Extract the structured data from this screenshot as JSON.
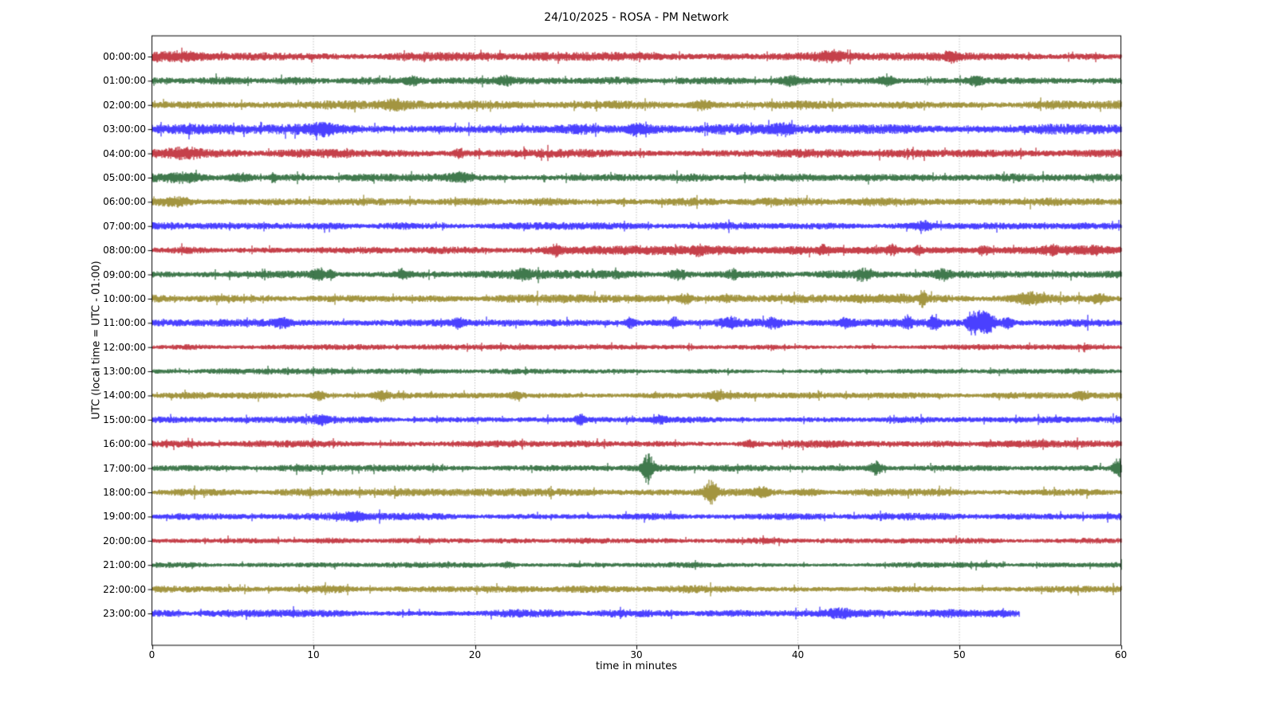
{
  "title": "24/10/2025 - ROSA - PM Network",
  "xlabel": "time in minutes",
  "ylabel": "UTC (local time = UTC - 01:00)",
  "chart_data": {
    "type": "line",
    "subtype": "helicorder-dayplot",
    "title": "24/10/2025 - ROSA - PM Network",
    "xlabel": "time in minutes",
    "ylabel": "UTC (local time = UTC - 01:00)",
    "x_range": [
      0,
      60
    ],
    "x_ticks": [
      0,
      10,
      20,
      30,
      40,
      50,
      60
    ],
    "grid": "dotted vertical gridlines at 10-minute intervals",
    "legend": "none",
    "axis_color": "#000000",
    "grid_color": "#999999",
    "color_cycle": [
      "#B2000F",
      "#004C12",
      "#847200",
      "#0E01FF"
    ],
    "rows": [
      {
        "label": "00:00:00",
        "color": "#B2000F",
        "base": 3.2,
        "end_min": 60,
        "events": [
          {
            "type": "burst",
            "t": 2.0,
            "w": 1.5,
            "amp": 4.0
          },
          {
            "type": "burst",
            "t": 42.0,
            "w": 0.8,
            "amp": 4.2
          },
          {
            "type": "burst",
            "t": 49.5,
            "w": 0.5,
            "amp": 4.2
          }
        ]
      },
      {
        "label": "01:00:00",
        "color": "#004C12",
        "base": 3.0,
        "end_min": 60,
        "events": [
          {
            "type": "burst",
            "t": 16.0,
            "w": 0.6,
            "amp": 4.6
          },
          {
            "type": "burst",
            "t": 21.8,
            "w": 0.5,
            "amp": 4.6
          },
          {
            "type": "burst",
            "t": 39.5,
            "w": 0.6,
            "amp": 4.4
          },
          {
            "type": "burst",
            "t": 45.5,
            "w": 0.5,
            "amp": 5.0
          },
          {
            "type": "burst",
            "t": 51.0,
            "w": 0.5,
            "amp": 4.6
          }
        ]
      },
      {
        "label": "02:00:00",
        "color": "#847200",
        "base": 3.4,
        "end_min": 60,
        "events": [
          {
            "type": "burst",
            "t": 15.0,
            "w": 0.8,
            "amp": 4.4
          },
          {
            "type": "burst",
            "t": 34.0,
            "w": 0.6,
            "amp": 5.2
          }
        ]
      },
      {
        "label": "03:00:00",
        "color": "#0E01FF",
        "base": 4.0,
        "end_min": 60,
        "events": [
          {
            "type": "burst",
            "t": 10.5,
            "w": 0.8,
            "amp": 5.4
          },
          {
            "type": "burst",
            "t": 30.0,
            "w": 0.7,
            "amp": 5.0
          },
          {
            "type": "burst",
            "t": 39.0,
            "w": 0.6,
            "amp": 5.0
          }
        ]
      },
      {
        "label": "04:00:00",
        "color": "#B2000F",
        "base": 3.3,
        "end_min": 60,
        "events": [
          {
            "type": "burst",
            "t": 2.0,
            "w": 1.0,
            "amp": 4.2
          },
          {
            "type": "spike",
            "t": 19.0,
            "w": 0.25,
            "amp": 5.5
          }
        ]
      },
      {
        "label": "05:00:00",
        "color": "#004C12",
        "base": 3.0,
        "end_min": 60,
        "events": [
          {
            "type": "burst",
            "t": 2.0,
            "w": 1.2,
            "amp": 4.4
          },
          {
            "type": "burst",
            "t": 5.5,
            "w": 0.8,
            "amp": 4.4
          },
          {
            "type": "spike",
            "t": 7.5,
            "w": 0.2,
            "amp": 5.0
          },
          {
            "type": "burst",
            "t": 19.0,
            "w": 0.6,
            "amp": 4.2
          }
        ]
      },
      {
        "label": "06:00:00",
        "color": "#847200",
        "base": 3.2,
        "end_min": 60,
        "events": [
          {
            "type": "burst",
            "t": 1.5,
            "w": 1.0,
            "amp": 4.4
          }
        ]
      },
      {
        "label": "07:00:00",
        "color": "#0E01FF",
        "base": 2.8,
        "end_min": 60,
        "events": [
          {
            "type": "burst",
            "t": 47.8,
            "w": 0.5,
            "amp": 5.2
          }
        ]
      },
      {
        "label": "08:00:00",
        "color": "#B2000F",
        "base": 2.7,
        "end_min": 60,
        "events": [
          {
            "type": "region",
            "t0": 24.0,
            "t1": 60.0,
            "amp": 1.6
          },
          {
            "type": "spike",
            "t": 25.0,
            "w": 0.3,
            "amp": 6.0
          },
          {
            "type": "burst",
            "t": 33.8,
            "w": 0.4,
            "amp": 6.2
          },
          {
            "type": "burst",
            "t": 41.5,
            "w": 0.4,
            "amp": 5.2
          },
          {
            "type": "burst",
            "t": 45.8,
            "w": 0.4,
            "amp": 6.0
          },
          {
            "type": "burst",
            "t": 47.4,
            "w": 0.3,
            "amp": 5.6
          },
          {
            "type": "burst",
            "t": 51.5,
            "w": 0.4,
            "amp": 6.0
          },
          {
            "type": "burst",
            "t": 55.8,
            "w": 0.3,
            "amp": 5.2
          },
          {
            "type": "burst",
            "t": 58.3,
            "w": 0.3,
            "amp": 5.0
          }
        ]
      },
      {
        "label": "09:00:00",
        "color": "#004C12",
        "base": 3.3,
        "end_min": 60,
        "events": [
          {
            "type": "burst",
            "t": 10.3,
            "w": 0.5,
            "amp": 6.4
          },
          {
            "type": "burst",
            "t": 11.0,
            "w": 0.3,
            "amp": 6.0
          },
          {
            "type": "burst",
            "t": 15.5,
            "w": 0.4,
            "amp": 5.0
          },
          {
            "type": "burst",
            "t": 23.0,
            "w": 0.4,
            "amp": 4.6
          },
          {
            "type": "burst",
            "t": 32.5,
            "w": 0.5,
            "amp": 5.6
          },
          {
            "type": "burst",
            "t": 36.0,
            "w": 0.4,
            "amp": 4.8
          },
          {
            "type": "burst",
            "t": 44.0,
            "w": 0.4,
            "amp": 5.2
          },
          {
            "type": "burst",
            "t": 49.0,
            "w": 0.4,
            "amp": 4.6
          }
        ]
      },
      {
        "label": "10:00:00",
        "color": "#847200",
        "base": 3.0,
        "end_min": 60,
        "events": [
          {
            "type": "burst",
            "t": 33.0,
            "w": 0.4,
            "amp": 5.0
          },
          {
            "type": "region",
            "t0": 43.0,
            "t1": 47.0,
            "amp": 2.2
          },
          {
            "type": "spike",
            "t": 47.7,
            "w": 0.22,
            "amp": 9.5
          },
          {
            "type": "burst",
            "t": 54.3,
            "w": 0.9,
            "amp": 6.0
          },
          {
            "type": "burst",
            "t": 58.6,
            "w": 0.5,
            "amp": 4.8
          }
        ]
      },
      {
        "label": "11:00:00",
        "color": "#0E01FF",
        "base": 3.4,
        "end_min": 60,
        "events": [
          {
            "type": "burst",
            "t": 8.0,
            "w": 0.5,
            "amp": 4.6
          },
          {
            "type": "burst",
            "t": 19.0,
            "w": 0.35,
            "amp": 5.4
          },
          {
            "type": "burst",
            "t": 29.6,
            "w": 0.3,
            "amp": 6.2
          },
          {
            "type": "burst",
            "t": 32.3,
            "w": 0.3,
            "amp": 5.6
          },
          {
            "type": "burst",
            "t": 35.8,
            "w": 0.4,
            "amp": 4.8
          },
          {
            "type": "burst",
            "t": 38.5,
            "w": 0.4,
            "amp": 5.2
          },
          {
            "type": "burst",
            "t": 43.0,
            "w": 0.4,
            "amp": 5.0
          },
          {
            "type": "spike",
            "t": 46.8,
            "w": 0.25,
            "amp": 8.0
          },
          {
            "type": "spike",
            "t": 48.4,
            "w": 0.3,
            "amp": 10.0
          },
          {
            "type": "region",
            "t0": 50.2,
            "t1": 52.4,
            "amp": 13.0
          },
          {
            "type": "burst",
            "t": 52.9,
            "w": 0.4,
            "amp": 6.0
          }
        ]
      },
      {
        "label": "12:00:00",
        "color": "#B2000F",
        "base": 2.2,
        "end_min": 60,
        "events": []
      },
      {
        "label": "13:00:00",
        "color": "#004C12",
        "base": 2.2,
        "end_min": 60,
        "events": []
      },
      {
        "label": "14:00:00",
        "color": "#847200",
        "base": 2.6,
        "end_min": 60,
        "events": [
          {
            "type": "burst",
            "t": 10.3,
            "w": 0.4,
            "amp": 5.2
          },
          {
            "type": "burst",
            "t": 14.2,
            "w": 0.5,
            "amp": 5.2
          },
          {
            "type": "burst",
            "t": 22.5,
            "w": 0.4,
            "amp": 4.2
          },
          {
            "type": "burst",
            "t": 35.0,
            "w": 0.4,
            "amp": 4.0
          },
          {
            "type": "burst",
            "t": 57.5,
            "w": 0.4,
            "amp": 4.6
          }
        ]
      },
      {
        "label": "15:00:00",
        "color": "#0E01FF",
        "base": 2.6,
        "end_min": 60,
        "events": [
          {
            "type": "burst",
            "t": 10.5,
            "w": 0.5,
            "amp": 4.0
          },
          {
            "type": "spike",
            "t": 26.5,
            "w": 0.3,
            "amp": 7.0
          },
          {
            "type": "burst",
            "t": 31.5,
            "w": 0.4,
            "amp": 4.2
          }
        ]
      },
      {
        "label": "16:00:00",
        "color": "#B2000F",
        "base": 2.6,
        "end_min": 60,
        "events": [
          {
            "type": "burst",
            "t": 37.0,
            "w": 0.4,
            "amp": 3.8
          },
          {
            "type": "region",
            "t0": 51.0,
            "t1": 55.5,
            "amp": 1.8
          }
        ]
      },
      {
        "label": "17:00:00",
        "color": "#004C12",
        "base": 2.6,
        "end_min": 60,
        "events": [
          {
            "type": "spike",
            "t": 30.7,
            "w": 0.35,
            "amp": 18.0
          },
          {
            "type": "burst",
            "t": 44.8,
            "w": 0.45,
            "amp": 7.0
          },
          {
            "type": "spike",
            "t": 59.8,
            "w": 0.3,
            "amp": 11.0
          }
        ]
      },
      {
        "label": "18:00:00",
        "color": "#847200",
        "base": 3.0,
        "end_min": 60,
        "events": [
          {
            "type": "spike",
            "t": 34.6,
            "w": 0.4,
            "amp": 13.0
          },
          {
            "type": "burst",
            "t": 37.8,
            "w": 0.5,
            "amp": 4.6
          },
          {
            "type": "region",
            "t0": 39.5,
            "t1": 41.6,
            "amp": 2.4
          }
        ]
      },
      {
        "label": "19:00:00",
        "color": "#0E01FF",
        "base": 2.7,
        "end_min": 60,
        "events": [
          {
            "type": "burst",
            "t": 12.5,
            "w": 0.6,
            "amp": 4.0
          }
        ]
      },
      {
        "label": "20:00:00",
        "color": "#B2000F",
        "base": 2.3,
        "end_min": 60,
        "events": []
      },
      {
        "label": "21:00:00",
        "color": "#004C12",
        "base": 2.2,
        "end_min": 60,
        "events": [
          {
            "type": "burst",
            "t": 22.0,
            "w": 0.4,
            "amp": 3.4
          }
        ]
      },
      {
        "label": "22:00:00",
        "color": "#847200",
        "base": 3.0,
        "end_min": 60,
        "events": []
      },
      {
        "label": "23:00:00",
        "color": "#0E01FF",
        "base": 3.0,
        "end_min": 53.7,
        "events": [
          {
            "type": "burst",
            "t": 42.5,
            "w": 0.8,
            "amp": 4.4
          },
          {
            "type": "region",
            "t0": 48.8,
            "t1": 53.2,
            "amp": 1.2
          }
        ]
      }
    ]
  }
}
